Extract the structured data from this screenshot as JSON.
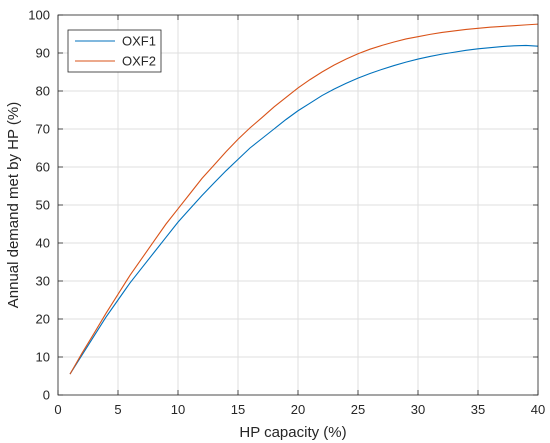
{
  "chart_data": {
    "type": "line",
    "xlabel": "HP capacity (%)",
    "ylabel": "Annual demand met by HP (%)",
    "xlim": [
      0,
      40
    ],
    "ylim": [
      0,
      100
    ],
    "xticks": [
      0,
      5,
      10,
      15,
      20,
      25,
      30,
      35,
      40
    ],
    "yticks": [
      0,
      10,
      20,
      30,
      40,
      50,
      60,
      70,
      80,
      90,
      100
    ],
    "grid": true,
    "legend_position": "top-left",
    "series": [
      {
        "name": "OXF1",
        "color": "#0072BD",
        "x": [
          1,
          2,
          3,
          4,
          5,
          6,
          7,
          8,
          9,
          10,
          11,
          12,
          13,
          14,
          15,
          16,
          17,
          18,
          19,
          20,
          21,
          22,
          23,
          24,
          25,
          26,
          27,
          28,
          29,
          30,
          31,
          32,
          33,
          34,
          35,
          36,
          37,
          38,
          39,
          40
        ],
        "y": [
          5.5,
          10.5,
          15.5,
          20.5,
          25,
          29.5,
          33.5,
          37.5,
          41.5,
          45.5,
          49,
          52.5,
          55.8,
          59,
          62,
          65,
          67.5,
          70,
          72.5,
          74.8,
          76.8,
          78.8,
          80.5,
          82,
          83.4,
          84.6,
          85.7,
          86.7,
          87.6,
          88.4,
          89.1,
          89.7,
          90.2,
          90.7,
          91.1,
          91.4,
          91.7,
          91.9,
          92.0,
          91.8
        ]
      },
      {
        "name": "OXF2",
        "color": "#D95319",
        "x": [
          1,
          2,
          3,
          4,
          5,
          6,
          7,
          8,
          9,
          10,
          11,
          12,
          13,
          14,
          15,
          16,
          17,
          18,
          19,
          20,
          21,
          22,
          23,
          24,
          25,
          26,
          27,
          28,
          29,
          30,
          31,
          32,
          33,
          34,
          35,
          36,
          37,
          38,
          39,
          40
        ],
        "y": [
          5.5,
          11,
          16.2,
          21.5,
          26.5,
          31.5,
          36,
          40.5,
          45,
          49,
          53,
          57,
          60.5,
          64,
          67.3,
          70.3,
          73,
          75.8,
          78.3,
          80.8,
          83,
          85,
          86.8,
          88.4,
          89.8,
          91,
          92,
          92.9,
          93.7,
          94.3,
          94.9,
          95.4,
          95.8,
          96.2,
          96.5,
          96.8,
          97.0,
          97.2,
          97.4,
          97.6
        ]
      }
    ]
  }
}
